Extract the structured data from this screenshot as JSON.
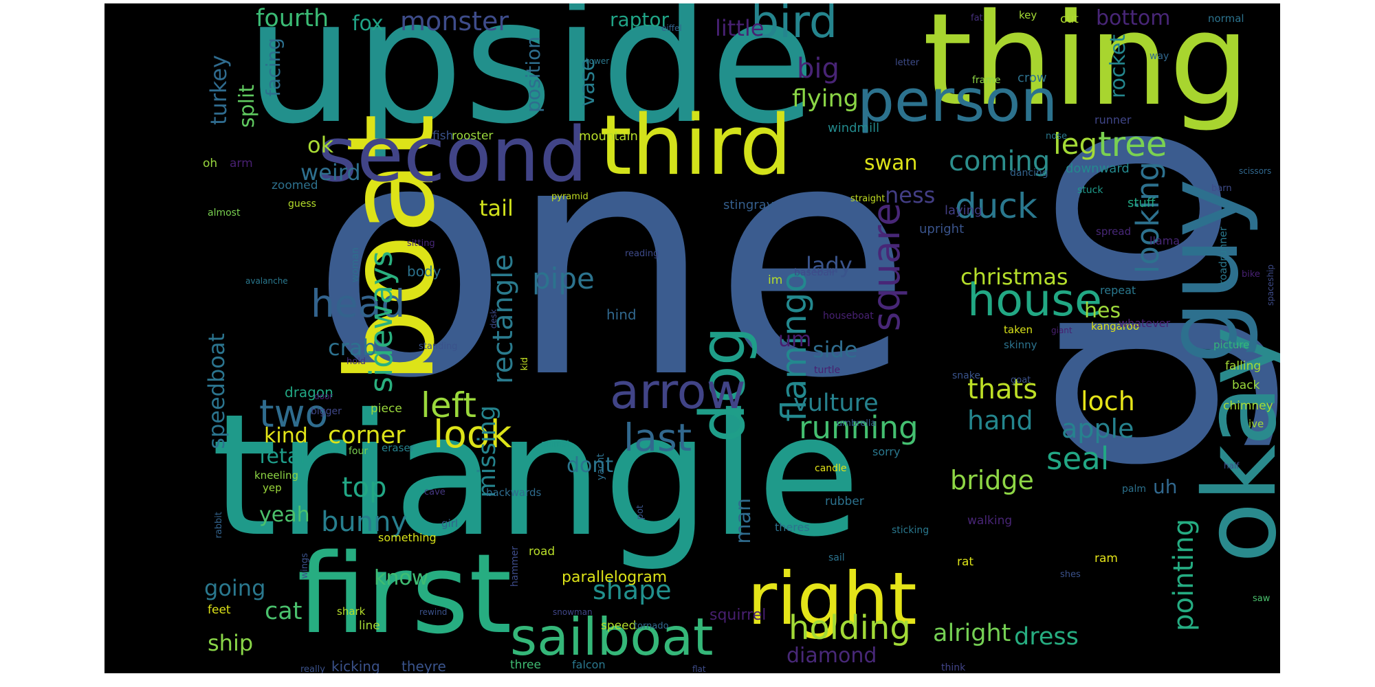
{
  "words": [
    {
      "text": "one",
      "color": "#3b5c8f"
    },
    {
      "text": "go",
      "color": "#3b5c8f"
    },
    {
      "text": "upside",
      "color": "#22908c"
    },
    {
      "text": "triangle",
      "color": "#1f9a8a"
    },
    {
      "text": "thing",
      "color": "#a8d52f"
    },
    {
      "text": "boat",
      "color": "#dde318"
    },
    {
      "text": "okay",
      "color": "#2a8a8d"
    },
    {
      "text": "guy",
      "color": "#2d708e"
    },
    {
      "text": "first",
      "color": "#27ad81"
    },
    {
      "text": "second",
      "color": "#414487"
    },
    {
      "text": "third",
      "color": "#d3e21b"
    },
    {
      "text": "person",
      "color": "#2c728e"
    },
    {
      "text": "right",
      "color": "#e4e419"
    },
    {
      "text": "dog",
      "color": "#1f9e89"
    },
    {
      "text": "arrow",
      "color": "#414487"
    },
    {
      "text": "bird",
      "color": "#25858e"
    },
    {
      "text": "sailboat",
      "color": "#35b779"
    },
    {
      "text": "square",
      "color": "#482777"
    },
    {
      "text": "house",
      "color": "#22a884"
    },
    {
      "text": "head",
      "color": "#33638d"
    },
    {
      "text": "two",
      "color": "#2f6c8e"
    },
    {
      "text": "look",
      "color": "#dde318"
    },
    {
      "text": "last",
      "color": "#31688e"
    },
    {
      "text": "duck",
      "color": "#2a788e"
    },
    {
      "text": "left",
      "color": "#9bd93c"
    },
    {
      "text": "flamingo",
      "color": "#23888e"
    },
    {
      "text": "looking",
      "color": "#2d718e"
    },
    {
      "text": "sideways",
      "color": "#2ab07f"
    },
    {
      "text": "rectangle",
      "color": "#2a7b8e"
    },
    {
      "text": "pipe",
      "color": "#2c738e"
    },
    {
      "text": "pointing",
      "color": "#25ac82"
    },
    {
      "text": "leg",
      "color": "#a5db36"
    },
    {
      "text": "tree",
      "color": "#7ad151"
    },
    {
      "text": "holding",
      "color": "#a2da37"
    },
    {
      "text": "running",
      "color": "#44bf70"
    },
    {
      "text": "coming",
      "color": "#2c8e8c"
    },
    {
      "text": "seal",
      "color": "#22a785"
    },
    {
      "text": "christmas",
      "color": "#b5de2b"
    },
    {
      "text": "bridge",
      "color": "#8ed645"
    },
    {
      "text": "apple",
      "color": "#26828e"
    },
    {
      "text": "loch",
      "color": "#e5e419"
    },
    {
      "text": "thats",
      "color": "#bddf26"
    },
    {
      "text": "hand",
      "color": "#24868e"
    },
    {
      "text": "missing",
      "color": "#25848e"
    },
    {
      "text": "top",
      "color": "#22a785"
    },
    {
      "text": "bunny",
      "color": "#277f8e"
    },
    {
      "text": "corner",
      "color": "#dde318"
    },
    {
      "text": "kind",
      "color": "#e2e418"
    },
    {
      "text": "fetal",
      "color": "#1e9c89"
    },
    {
      "text": "vulture",
      "color": "#26828e"
    },
    {
      "text": "shape",
      "color": "#21908d"
    },
    {
      "text": "diamond",
      "color": "#482878"
    },
    {
      "text": "alright",
      "color": "#75d054"
    },
    {
      "text": "dress",
      "color": "#27ad81"
    },
    {
      "text": "turkey",
      "color": "#2f6b8e"
    },
    {
      "text": "fourth",
      "color": "#3bbb75"
    },
    {
      "text": "monster",
      "color": "#3e4c8a"
    },
    {
      "text": "fox",
      "color": "#20a386"
    },
    {
      "text": "raptor",
      "color": "#20a486"
    },
    {
      "text": "little",
      "color": "#482173"
    },
    {
      "text": "bottom",
      "color": "#482677"
    },
    {
      "text": "big",
      "color": "#482475"
    },
    {
      "text": "flying",
      "color": "#8bd646"
    },
    {
      "text": "rocket",
      "color": "#24878e"
    },
    {
      "text": "split",
      "color": "#60ca60"
    },
    {
      "text": "facing",
      "color": "#2d708e"
    },
    {
      "text": "position",
      "color": "#2e6e8e"
    },
    {
      "text": "vase",
      "color": "#277e8e"
    },
    {
      "text": "ok",
      "color": "#a8db34"
    },
    {
      "text": "weird",
      "color": "#2e6f8e"
    },
    {
      "text": "ness",
      "color": "#433e85"
    },
    {
      "text": "swan",
      "color": "#dde318"
    },
    {
      "text": "tail",
      "color": "#d0e11c"
    },
    {
      "text": "lady",
      "color": "#3a548c"
    },
    {
      "text": "um",
      "color": "#481d6f"
    },
    {
      "text": "side",
      "color": "#2f6c8e"
    },
    {
      "text": "crab",
      "color": "#2d718e"
    },
    {
      "text": "speedboat",
      "color": "#2b748e"
    },
    {
      "text": "going",
      "color": "#2a788e"
    },
    {
      "text": "know",
      "color": "#3fbc73"
    },
    {
      "text": "cat",
      "color": "#4ac16d"
    },
    {
      "text": "ship",
      "color": "#89d548"
    },
    {
      "text": "man",
      "color": "#2f6c8e"
    },
    {
      "text": "dont",
      "color": "#2b758e"
    },
    {
      "text": "yeah",
      "color": "#4cc26c"
    },
    {
      "text": "hes",
      "color": "#9dd93b"
    },
    {
      "text": "uh",
      "color": "#31688e"
    },
    {
      "text": "dragon",
      "color": "#22a884"
    },
    {
      "text": "kicking",
      "color": "#3b528b"
    },
    {
      "text": "theyre",
      "color": "#3a548c"
    },
    {
      "text": "parallelogram",
      "color": "#dde318"
    },
    {
      "text": "squirrel",
      "color": "#481f70"
    },
    {
      "text": "body",
      "color": "#2c728e"
    },
    {
      "text": "hind",
      "color": "#31688e"
    },
    {
      "text": "mountain",
      "color": "#b8de29"
    },
    {
      "text": "stingray",
      "color": "#355f8d"
    },
    {
      "text": "windmill",
      "color": "#238a8d"
    },
    {
      "text": "laying",
      "color": "#433e85"
    },
    {
      "text": "upright",
      "color": "#3a548c"
    },
    {
      "text": "downward",
      "color": "#23898e"
    },
    {
      "text": "stuff",
      "color": "#22a884"
    },
    {
      "text": "runner",
      "color": "#404688"
    },
    {
      "text": "crow",
      "color": "#2d718e"
    },
    {
      "text": "normal",
      "color": "#2c738e"
    },
    {
      "text": "key",
      "color": "#a5db36"
    },
    {
      "text": "cut",
      "color": "#b0dd2f"
    },
    {
      "text": "fat",
      "color": "#46307e"
    },
    {
      "text": "letter",
      "color": "#3e4c8a"
    },
    {
      "text": "frame",
      "color": "#8ed645"
    },
    {
      "text": "way",
      "color": "#31688e"
    },
    {
      "text": "eiffel",
      "color": "#33638d"
    },
    {
      "text": "tower",
      "color": "#2a788e"
    },
    {
      "text": "fish",
      "color": "#3b528b"
    },
    {
      "text": "rooster",
      "color": "#9bd93c"
    },
    {
      "text": "oh",
      "color": "#98d83e"
    },
    {
      "text": "arm",
      "color": "#482071"
    },
    {
      "text": "zoomed",
      "color": "#2d718e"
    },
    {
      "text": "pyramid",
      "color": "#c2df23"
    },
    {
      "text": "almost",
      "color": "#7ad151"
    },
    {
      "text": "guess",
      "color": "#b5de2b"
    },
    {
      "text": "woman",
      "color": "#2e6f8e"
    },
    {
      "text": "reading",
      "color": "#3e4a89"
    },
    {
      "text": "sitting",
      "color": "#482878"
    },
    {
      "text": "avalanche",
      "color": "#2a788e"
    },
    {
      "text": "baseball",
      "color": "#3e4c8a"
    },
    {
      "text": "im",
      "color": "#b5de2b"
    },
    {
      "text": "houseboat",
      "color": "#482173"
    },
    {
      "text": "standing",
      "color": "#3b528b"
    },
    {
      "text": "hold",
      "color": "#46327e"
    },
    {
      "text": "kid",
      "color": "#c2df23"
    },
    {
      "text": "door",
      "color": "#482071"
    },
    {
      "text": "bigger",
      "color": "#3f4788"
    },
    {
      "text": "piece",
      "color": "#9bd93c"
    },
    {
      "text": "eraser",
      "color": "#26828e"
    },
    {
      "text": "four",
      "color": "#7ad151"
    },
    {
      "text": "animal",
      "color": "#1f988b"
    },
    {
      "text": "yacht",
      "color": "#2d708e"
    },
    {
      "text": "umbrella",
      "color": "#355f8d"
    },
    {
      "text": "sorry",
      "color": "#2a788e"
    },
    {
      "text": "turtle",
      "color": "#481f70"
    },
    {
      "text": "snake",
      "color": "#3a548c"
    },
    {
      "text": "goat",
      "color": "#3b528b"
    },
    {
      "text": "candle",
      "color": "#e2e418"
    },
    {
      "text": "kneeling",
      "color": "#8ed645"
    },
    {
      "text": "yep",
      "color": "#9bd93c"
    },
    {
      "text": "cave",
      "color": "#453781"
    },
    {
      "text": "backwards",
      "color": "#2f6c8e"
    },
    {
      "text": "girl",
      "color": "#33638d"
    },
    {
      "text": "pot",
      "color": "#3a548c"
    },
    {
      "text": "rabbit",
      "color": "#33638d"
    },
    {
      "text": "wings",
      "color": "#3b528b"
    },
    {
      "text": "something",
      "color": "#d8e219"
    },
    {
      "text": "hammer",
      "color": "#3e4c8a"
    },
    {
      "text": "road",
      "color": "#b8de29"
    },
    {
      "text": "rubber",
      "color": "#2c728e"
    },
    {
      "text": "theres",
      "color": "#2d718e"
    },
    {
      "text": "sticking",
      "color": "#2a788e"
    },
    {
      "text": "walking",
      "color": "#482575"
    },
    {
      "text": "rat",
      "color": "#dde318"
    },
    {
      "text": "ram",
      "color": "#e4e419"
    },
    {
      "text": "palm",
      "color": "#2c728e"
    },
    {
      "text": "sail",
      "color": "#2c738e"
    },
    {
      "text": "shes",
      "color": "#3b528b"
    },
    {
      "text": "saw",
      "color": "#4ac16d"
    },
    {
      "text": "feet",
      "color": "#dde318"
    },
    {
      "text": "shark",
      "color": "#b5de2b"
    },
    {
      "text": "line",
      "color": "#a5db36"
    },
    {
      "text": "rewind",
      "color": "#3b528b"
    },
    {
      "text": "snowman",
      "color": "#404688"
    },
    {
      "text": "speed",
      "color": "#b5de2b"
    },
    {
      "text": "tornado",
      "color": "#31688e"
    },
    {
      "text": "falcon",
      "color": "#2a788e"
    },
    {
      "text": "three",
      "color": "#3fbc73"
    },
    {
      "text": "really",
      "color": "#3b528b"
    },
    {
      "text": "flat",
      "color": "#3e4c8a"
    },
    {
      "text": "think",
      "color": "#414487"
    },
    {
      "text": "skinny",
      "color": "#2c738e"
    },
    {
      "text": "taken",
      "color": "#d8e219"
    },
    {
      "text": "giant",
      "color": "#482071"
    },
    {
      "text": "kangaroo",
      "color": "#dde318"
    },
    {
      "text": "dancing",
      "color": "#33638d"
    },
    {
      "text": "stuck",
      "color": "#1f9a8a"
    },
    {
      "text": "barn",
      "color": "#3e4c8a"
    },
    {
      "text": "straight",
      "color": "#c2df23"
    },
    {
      "text": "scissors",
      "color": "#31688e"
    },
    {
      "text": "spread",
      "color": "#482878"
    },
    {
      "text": "llama",
      "color": "#482777"
    },
    {
      "text": "roadrunner",
      "color": "#2a788e"
    },
    {
      "text": "bike",
      "color": "#482173"
    },
    {
      "text": "spaceship",
      "color": "#3e4c8a"
    },
    {
      "text": "repeat",
      "color": "#2a788e"
    },
    {
      "text": "whatever",
      "color": "#482071"
    },
    {
      "text": "picture",
      "color": "#35b779"
    },
    {
      "text": "falling",
      "color": "#a5db36"
    },
    {
      "text": "back",
      "color": "#9bd93c"
    },
    {
      "text": "chimney",
      "color": "#a8db34"
    },
    {
      "text": "ive",
      "color": "#a5db36"
    },
    {
      "text": "half",
      "color": "#3e4c8a"
    },
    {
      "text": "desk",
      "color": "#3e4c8a"
    },
    {
      "text": "nose",
      "color": "#2a788e"
    }
  ]
}
